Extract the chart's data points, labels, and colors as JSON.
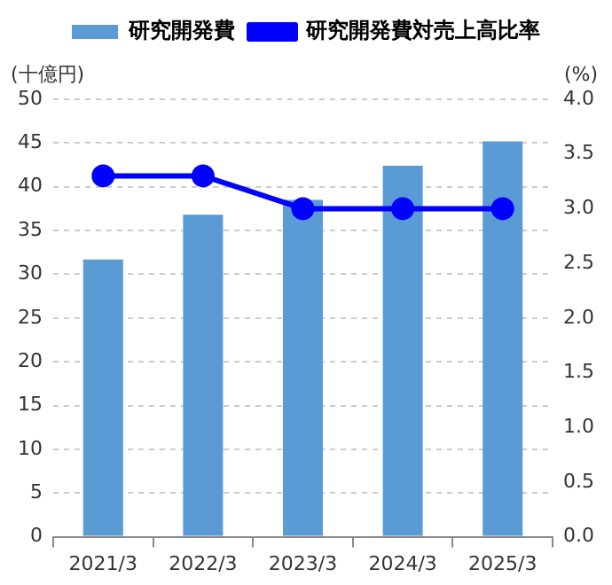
{
  "chart_data": {
    "type": "bar",
    "categories": [
      "2021/3",
      "2022/3",
      "2023/3",
      "2024/3",
      "2025/3"
    ],
    "series": [
      {
        "name": "研究開発費",
        "color": "#5b9bd5",
        "values": [
          31.7,
          36.8,
          38.5,
          42.4,
          45.2
        ]
      },
      {
        "name": "研究開発費対売上高比率",
        "type": "line",
        "axis": "y2",
        "color": "#0000ff",
        "values": [
          3.3,
          3.3,
          3.0,
          3.0,
          3.0
        ]
      }
    ],
    "ylabel": "(十億円)",
    "y2label": "(%)",
    "ylim": [
      0,
      50
    ],
    "yticks": [
      0,
      5,
      10,
      15,
      20,
      25,
      30,
      35,
      40,
      45,
      50
    ],
    "y2lim": [
      0,
      4
    ],
    "y2ticks": [
      {
        "value": 0,
        "label": "0.0"
      },
      {
        "value": 0.5,
        "label": "0.5"
      },
      {
        "value": 1,
        "label": "1.0"
      },
      {
        "value": 1.5,
        "label": "1.5"
      },
      {
        "value": 2,
        "label": "2.0"
      },
      {
        "value": 2.5,
        "label": "2.5"
      },
      {
        "value": 3,
        "label": "3.0"
      },
      {
        "value": 3.5,
        "label": "3.5"
      },
      {
        "value": 4,
        "label": "4.0"
      }
    ],
    "grid": "y",
    "legend": "top",
    "marker": "circle",
    "line_style": "solid"
  }
}
